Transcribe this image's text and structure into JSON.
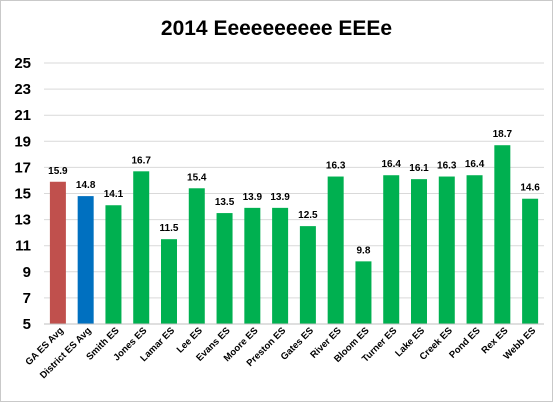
{
  "chart_data": {
    "type": "bar",
    "title": "2014 Eeeeeeeeee EEEe",
    "xlabel": "",
    "ylabel": "",
    "ylim": [
      5,
      25
    ],
    "yticks": [
      5,
      7,
      9,
      11,
      13,
      15,
      17,
      19,
      21,
      23,
      25
    ],
    "grid": true,
    "legend": "none",
    "categories": [
      "GA ES Avg",
      "District ES Avg",
      "Smith ES",
      "Jones ES",
      "Lamar ES",
      "Lee ES",
      "Evans ES",
      "Moore ES",
      "Preston ES",
      "Gates ES",
      "River ES",
      "Bloom ES",
      "Turner ES",
      "Lake ES",
      "Creek ES",
      "Pond ES",
      "Rex ES",
      "Webb ES"
    ],
    "values": [
      15.9,
      14.8,
      14.1,
      16.7,
      11.5,
      15.4,
      13.5,
      13.9,
      13.9,
      12.5,
      16.3,
      9.8,
      16.4,
      16.1,
      16.3,
      16.4,
      18.7,
      14.6
    ],
    "data_labels": [
      "15.9",
      "14.8",
      "14.1",
      "16.7",
      "11.5",
      "15.4",
      "13.5",
      "13.9",
      "13.9",
      "12.5",
      "16.3",
      "9.8",
      "16.4",
      "16.1",
      "16.3",
      "16.4",
      "18.7",
      "14.6"
    ],
    "bar_colors": [
      "#c0504d",
      "#0070c0",
      "#00b050",
      "#00b050",
      "#00b050",
      "#00b050",
      "#00b050",
      "#00b050",
      "#00b050",
      "#00b050",
      "#00b050",
      "#00b050",
      "#00b050",
      "#00b050",
      "#00b050",
      "#00b050",
      "#00b050",
      "#00b050"
    ],
    "grid_color": "#d9d9d9"
  }
}
